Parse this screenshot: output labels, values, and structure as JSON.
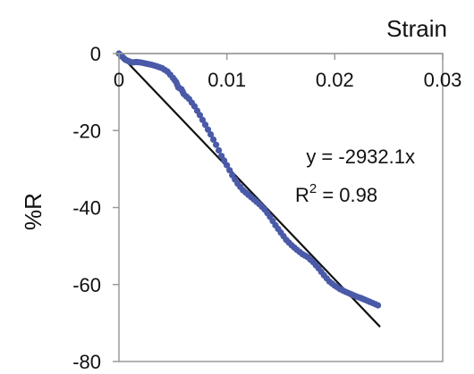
{
  "chart_data": {
    "type": "scatter",
    "title": "",
    "xlabel": "Strain",
    "ylabel": "%R",
    "xlim": [
      0,
      0.03
    ],
    "ylim": [
      -80,
      0
    ],
    "x_ticks": [
      "0",
      "0.01",
      "0.02",
      "0.03"
    ],
    "x_tick_values": [
      0,
      0.01,
      0.02,
      0.03
    ],
    "y_ticks": [
      "0",
      "-20",
      "-40",
      "-60",
      "-80"
    ],
    "y_tick_values": [
      0,
      -20,
      -40,
      -60,
      -80
    ],
    "x_axis_position": "top",
    "grid": false,
    "legend": "none",
    "series": [
      {
        "color": "#4a5aa8",
        "marker": "dense-points",
        "points": [
          [
            0.0,
            0.0
          ],
          [
            0.0003,
            -0.8
          ],
          [
            0.0006,
            -1.6
          ],
          [
            0.0009,
            -2.0
          ],
          [
            0.0012,
            -2.3
          ],
          [
            0.0016,
            -2.2
          ],
          [
            0.002,
            -2.3
          ],
          [
            0.0025,
            -2.6
          ],
          [
            0.003,
            -2.9
          ],
          [
            0.0035,
            -3.3
          ],
          [
            0.004,
            -3.8
          ],
          [
            0.0045,
            -4.7
          ],
          [
            0.005,
            -6.3
          ],
          [
            0.0053,
            -7.4
          ],
          [
            0.0055,
            -8.8
          ],
          [
            0.0058,
            -9.3
          ],
          [
            0.006,
            -10.5
          ],
          [
            0.0065,
            -11.8
          ],
          [
            0.007,
            -13.7
          ],
          [
            0.0075,
            -16.0
          ],
          [
            0.008,
            -18.5
          ],
          [
            0.0085,
            -21.0
          ],
          [
            0.009,
            -23.7
          ],
          [
            0.0095,
            -26.6
          ],
          [
            0.01,
            -29.0
          ],
          [
            0.0105,
            -31.6
          ],
          [
            0.011,
            -33.8
          ],
          [
            0.0115,
            -35.5
          ],
          [
            0.012,
            -36.7
          ],
          [
            0.0125,
            -37.9
          ],
          [
            0.013,
            -39.1
          ],
          [
            0.0135,
            -40.5
          ],
          [
            0.014,
            -42.4
          ],
          [
            0.0145,
            -44.6
          ],
          [
            0.015,
            -46.5
          ],
          [
            0.0155,
            -48.4
          ],
          [
            0.016,
            -49.8
          ],
          [
            0.0165,
            -51.0
          ],
          [
            0.017,
            -52.1
          ],
          [
            0.0175,
            -52.9
          ],
          [
            0.018,
            -54.2
          ],
          [
            0.0185,
            -55.8
          ],
          [
            0.019,
            -57.6
          ],
          [
            0.0195,
            -59.2
          ],
          [
            0.02,
            -60.3
          ],
          [
            0.0205,
            -61.2
          ],
          [
            0.021,
            -61.9
          ],
          [
            0.0215,
            -62.5
          ],
          [
            0.022,
            -63.1
          ],
          [
            0.0225,
            -63.6
          ],
          [
            0.023,
            -64.2
          ],
          [
            0.0235,
            -64.8
          ],
          [
            0.024,
            -65.4
          ]
        ]
      },
      {
        "color": "#111111",
        "type": "line",
        "points": [
          [
            0.0,
            0.0
          ],
          [
            0.0242,
            -71.0
          ]
        ]
      }
    ],
    "annotations": [
      {
        "text": "y = -2932.1x"
      },
      {
        "text": "R",
        "superscript": "2",
        "suffix": " = 0.98"
      }
    ]
  }
}
